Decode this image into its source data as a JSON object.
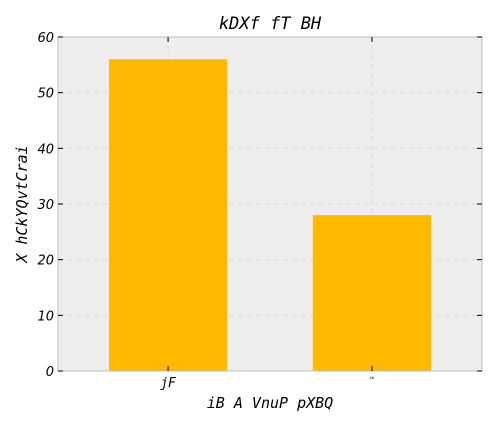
{
  "chart_data": {
    "type": "bar",
    "title": "kDXf fT BH",
    "xlabel": "iB A VnuP pXBQ",
    "ylabel": "X hCkYQvtCrai",
    "categories": [
      "jF",
      "ᶻᵇ"
    ],
    "values": [
      56,
      28
    ],
    "ylim": [
      0,
      60
    ],
    "yticks": [
      0,
      10,
      20,
      30,
      40,
      50,
      60
    ],
    "grid": true,
    "bar_color": "#ffb900",
    "background_color": "#eeeeee",
    "grid_color": "#d9d9d9",
    "frame_color": "#bcbcbc"
  }
}
